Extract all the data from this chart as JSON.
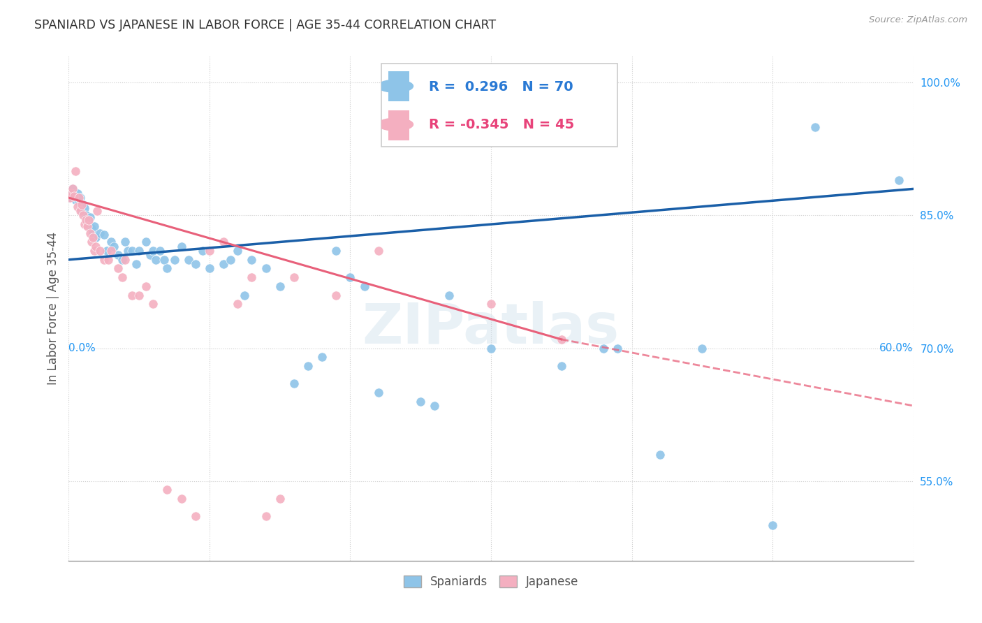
{
  "title": "SPANIARD VS JAPANESE IN LABOR FORCE | AGE 35-44 CORRELATION CHART",
  "source": "Source: ZipAtlas.com",
  "ylabel": "In Labor Force | Age 35-44",
  "watermark": "ZIPatlas",
  "legend_spaniards": "Spaniards",
  "legend_japanese": "Japanese",
  "R_spaniards": 0.296,
  "N_spaniards": 70,
  "R_japanese": -0.345,
  "N_japanese": 45,
  "blue_color": "#8ec4e8",
  "blue_line_color": "#1a5fa8",
  "pink_color": "#f4afc0",
  "pink_line_color": "#e8607a",
  "blue_scatter": [
    [
      0.001,
      0.87
    ],
    [
      0.002,
      0.875
    ],
    [
      0.003,
      0.88
    ],
    [
      0.004,
      0.872
    ],
    [
      0.005,
      0.868
    ],
    [
      0.006,
      0.875
    ],
    [
      0.007,
      0.865
    ],
    [
      0.008,
      0.87
    ],
    [
      0.009,
      0.855
    ],
    [
      0.01,
      0.862
    ],
    [
      0.011,
      0.858
    ],
    [
      0.012,
      0.85
    ],
    [
      0.013,
      0.845
    ],
    [
      0.014,
      0.84
    ],
    [
      0.015,
      0.848
    ],
    [
      0.016,
      0.835
    ],
    [
      0.017,
      0.83
    ],
    [
      0.018,
      0.838
    ],
    [
      0.019,
      0.825
    ],
    [
      0.022,
      0.83
    ],
    [
      0.025,
      0.828
    ],
    [
      0.027,
      0.81
    ],
    [
      0.03,
      0.82
    ],
    [
      0.032,
      0.815
    ],
    [
      0.035,
      0.805
    ],
    [
      0.038,
      0.8
    ],
    [
      0.04,
      0.82
    ],
    [
      0.042,
      0.81
    ],
    [
      0.045,
      0.81
    ],
    [
      0.048,
      0.795
    ],
    [
      0.05,
      0.81
    ],
    [
      0.055,
      0.82
    ],
    [
      0.058,
      0.805
    ],
    [
      0.06,
      0.81
    ],
    [
      0.062,
      0.8
    ],
    [
      0.065,
      0.81
    ],
    [
      0.068,
      0.8
    ],
    [
      0.07,
      0.79
    ],
    [
      0.075,
      0.8
    ],
    [
      0.08,
      0.815
    ],
    [
      0.085,
      0.8
    ],
    [
      0.09,
      0.795
    ],
    [
      0.095,
      0.81
    ],
    [
      0.1,
      0.79
    ],
    [
      0.11,
      0.795
    ],
    [
      0.115,
      0.8
    ],
    [
      0.12,
      0.81
    ],
    [
      0.125,
      0.76
    ],
    [
      0.13,
      0.8
    ],
    [
      0.14,
      0.79
    ],
    [
      0.15,
      0.77
    ],
    [
      0.16,
      0.66
    ],
    [
      0.17,
      0.68
    ],
    [
      0.18,
      0.69
    ],
    [
      0.19,
      0.81
    ],
    [
      0.2,
      0.78
    ],
    [
      0.21,
      0.77
    ],
    [
      0.22,
      0.65
    ],
    [
      0.25,
      0.64
    ],
    [
      0.26,
      0.635
    ],
    [
      0.27,
      0.76
    ],
    [
      0.3,
      0.7
    ],
    [
      0.35,
      0.68
    ],
    [
      0.38,
      0.7
    ],
    [
      0.39,
      0.7
    ],
    [
      0.42,
      0.58
    ],
    [
      0.45,
      0.7
    ],
    [
      0.5,
      0.5
    ],
    [
      0.53,
      0.95
    ],
    [
      0.59,
      0.89
    ]
  ],
  "pink_scatter": [
    [
      0.001,
      0.87
    ],
    [
      0.002,
      0.875
    ],
    [
      0.003,
      0.88
    ],
    [
      0.004,
      0.872
    ],
    [
      0.005,
      0.9
    ],
    [
      0.006,
      0.86
    ],
    [
      0.007,
      0.87
    ],
    [
      0.008,
      0.855
    ],
    [
      0.009,
      0.862
    ],
    [
      0.01,
      0.85
    ],
    [
      0.011,
      0.84
    ],
    [
      0.012,
      0.845
    ],
    [
      0.013,
      0.838
    ],
    [
      0.014,
      0.845
    ],
    [
      0.015,
      0.83
    ],
    [
      0.016,
      0.82
    ],
    [
      0.017,
      0.825
    ],
    [
      0.018,
      0.81
    ],
    [
      0.019,
      0.815
    ],
    [
      0.02,
      0.855
    ],
    [
      0.022,
      0.81
    ],
    [
      0.025,
      0.8
    ],
    [
      0.028,
      0.8
    ],
    [
      0.03,
      0.81
    ],
    [
      0.035,
      0.79
    ],
    [
      0.038,
      0.78
    ],
    [
      0.04,
      0.8
    ],
    [
      0.045,
      0.76
    ],
    [
      0.05,
      0.76
    ],
    [
      0.055,
      0.77
    ],
    [
      0.06,
      0.75
    ],
    [
      0.07,
      0.54
    ],
    [
      0.08,
      0.53
    ],
    [
      0.09,
      0.51
    ],
    [
      0.1,
      0.81
    ],
    [
      0.11,
      0.82
    ],
    [
      0.12,
      0.75
    ],
    [
      0.13,
      0.78
    ],
    [
      0.14,
      0.51
    ],
    [
      0.15,
      0.53
    ],
    [
      0.16,
      0.78
    ],
    [
      0.19,
      0.76
    ],
    [
      0.22,
      0.81
    ],
    [
      0.3,
      0.75
    ],
    [
      0.35,
      0.71
    ]
  ],
  "xlim": [
    0.0,
    0.6
  ],
  "ylim": [
    0.46,
    1.03
  ],
  "yticks": [
    0.55,
    0.7,
    0.85,
    1.0
  ],
  "ytick_labels": [
    "55.0%",
    "70.0%",
    "85.0%",
    "100.0%"
  ],
  "xtick_show": [
    0.0,
    0.6
  ],
  "xtick_show_labels": [
    "0.0%",
    "60.0%"
  ],
  "xtick_grid": [
    0.0,
    0.1,
    0.2,
    0.3,
    0.4,
    0.5,
    0.6
  ]
}
